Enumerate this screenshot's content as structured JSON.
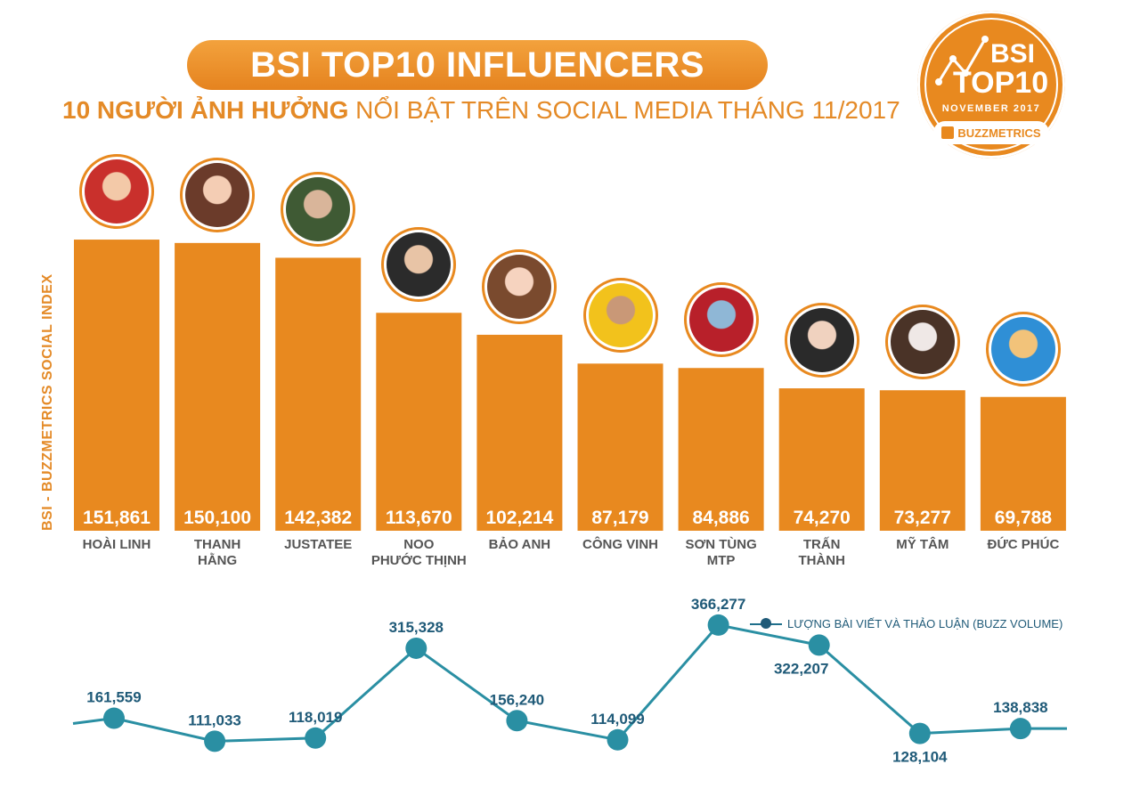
{
  "header": {
    "title": "BSI TOP10 INFLUENCERS",
    "subtitle_bold": "10 NGƯỜI ẢNH HƯỞNG",
    "subtitle_rest": " NỔI BẬT TRÊN SOCIAL MEDIA THÁNG 11/2017"
  },
  "badge": {
    "line1": "BSI",
    "line2": "TOP10",
    "month": "NOVEMBER 2017",
    "brand": "BUZZMETRICS"
  },
  "colors": {
    "accent": "#e8891f",
    "bar": "#e8891f",
    "line": "#2a8fa3",
    "marker": "#1f5a78",
    "label": "#555555"
  },
  "chart_data": [
    {
      "type": "bar",
      "title": "BSI TOP10 INFLUENCERS",
      "ylabel": "BSI - BUZZMETRICS SOCIAL INDEX",
      "categories": [
        [
          "HOÀI LINH"
        ],
        [
          "THANH",
          "HẰNG"
        ],
        [
          "JUSTATEE"
        ],
        [
          "NOO",
          "PHƯỚC THỊNH"
        ],
        [
          "BẢO ANH"
        ],
        [
          "CÔNG VINH"
        ],
        [
          "SƠN TÙNG",
          "MTP"
        ],
        [
          "TRẤN",
          "THÀNH"
        ],
        [
          "MỸ TÂM"
        ],
        [
          "ĐỨC PHÚC"
        ]
      ],
      "values": [
        151861,
        150100,
        142382,
        113670,
        102214,
        87179,
        84886,
        74270,
        73277,
        69788
      ],
      "value_labels": [
        "151,861",
        "150,100",
        "142,382",
        "113,670",
        "102,214",
        "87,179",
        "84,886",
        "74,270",
        "73,277",
        "69,788"
      ],
      "ylim": [
        0,
        170000
      ],
      "grid": false
    },
    {
      "type": "line",
      "legend": "LƯỢNG BÀI VIẾT VÀ THẢO LUẬN (BUZZ VOLUME)",
      "legend_position": "top-right",
      "values": [
        161559,
        111033,
        118019,
        315328,
        156240,
        114099,
        366277,
        322207,
        128104,
        138838
      ],
      "value_labels": [
        "161,559",
        "111,033",
        "118,019",
        "315,328",
        "156,240",
        "114,099",
        "366,277",
        "322,207",
        "128,104",
        "138,838"
      ],
      "label_positions": [
        "above",
        "above",
        "above",
        "above",
        "above",
        "above",
        "above",
        "below",
        "below",
        "above"
      ],
      "ylim": [
        100000,
        370000
      ]
    }
  ],
  "avatars": [
    {
      "colors": [
        "#c9302c",
        "#f3c9a8"
      ]
    },
    {
      "colors": [
        "#6b3b2a",
        "#f4cdb4"
      ]
    },
    {
      "colors": [
        "#3f5a34",
        "#d9b59a"
      ]
    },
    {
      "colors": [
        "#2b2b2b",
        "#e8c4a6"
      ]
    },
    {
      "colors": [
        "#7a4a2e",
        "#f6d3bf"
      ]
    },
    {
      "colors": [
        "#f2c21c",
        "#c99877"
      ]
    },
    {
      "colors": [
        "#b8202a",
        "#8fb7d6"
      ]
    },
    {
      "colors": [
        "#2a2a2a",
        "#f0d2bf"
      ]
    },
    {
      "colors": [
        "#4a3327",
        "#efe8e6"
      ]
    },
    {
      "colors": [
        "#2f8fd6",
        "#f2c37a"
      ]
    }
  ]
}
